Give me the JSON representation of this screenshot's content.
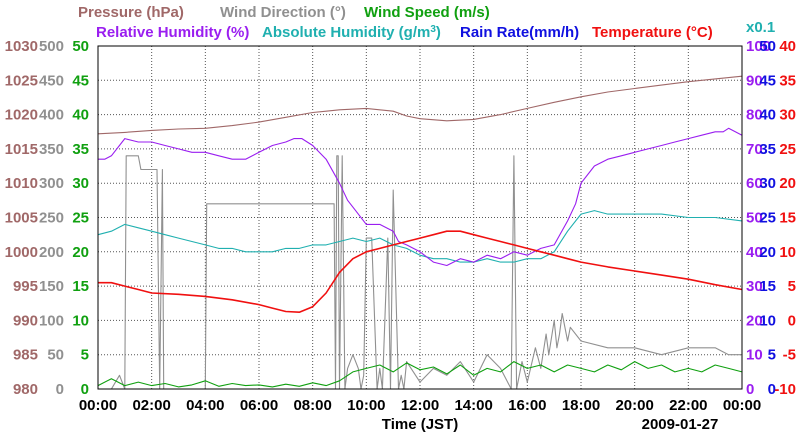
{
  "chart_data": {
    "type": "line",
    "title": "",
    "date_label": "2009-01-27",
    "xlabel": "Time (JST)",
    "x_ticks": [
      "00:00",
      "02:00",
      "04:00",
      "06:00",
      "08:00",
      "10:00",
      "12:00",
      "14:00",
      "16:00",
      "18:00",
      "20:00",
      "22:00",
      "00:00"
    ],
    "x_range_hours": [
      0,
      24
    ],
    "grid": true,
    "legend": [
      {
        "name": "Pressure (hPa)",
        "color": "#a06868"
      },
      {
        "name": "Wind Direction (°)",
        "color": "#909090"
      },
      {
        "name": "Wind Speed (m/s)",
        "color": "#10a010"
      },
      {
        "name": "Relative Humidity (%)",
        "color": "#9a1ef0"
      },
      {
        "name": "Absolute Humidity (g/m",
        "sup": "3",
        "tail": ")",
        "color": "#20b0b0"
      },
      {
        "name": "Rain Rate(mm/h)",
        "color": "#1010e0"
      },
      {
        "name": "Temperature (°C)",
        "color": "#f01010"
      }
    ],
    "multiplier_label": "x0.1",
    "axes": {
      "pressure": {
        "color": "#a06868",
        "range": [
          980,
          1030
        ],
        "ticks": [
          "980",
          "985",
          "990",
          "995",
          "1000",
          "1005",
          "1010",
          "1015",
          "1020",
          "1025",
          "1030"
        ]
      },
      "wind_direction": {
        "color": "#909090",
        "range": [
          0,
          500
        ],
        "ticks": [
          "0",
          "50",
          "100",
          "150",
          "200",
          "250",
          "300",
          "350",
          "400",
          "450",
          "500"
        ]
      },
      "wind_speed": {
        "color": "#10a010",
        "range": [
          0,
          50
        ],
        "ticks": [
          "0",
          "5",
          "10",
          "15",
          "20",
          "25",
          "30",
          "35",
          "40",
          "45",
          "50"
        ]
      },
      "relative_humidity": {
        "color": "#9a1ef0",
        "range": [
          0,
          100
        ],
        "ticks": [
          "0",
          "10",
          "20",
          "30",
          "40",
          "50",
          "60",
          "70",
          "80",
          "90",
          "100"
        ]
      },
      "rain_rate": {
        "color": "#1010e0",
        "range": [
          0,
          50
        ],
        "ticks": [
          "0",
          "5",
          "10",
          "15",
          "20",
          "25",
          "30",
          "35",
          "40",
          "45",
          "50"
        ]
      },
      "temperature": {
        "color": "#f01010",
        "range": [
          -10,
          40
        ],
        "ticks": [
          "-10",
          "-5",
          "0",
          "5",
          "10",
          "15",
          "20",
          "25",
          "30",
          "35",
          "40"
        ]
      }
    },
    "series": [
      {
        "name": "Pressure (hPa)",
        "axis": "pressure",
        "color": "#a06868",
        "x": [
          0,
          1,
          2,
          3,
          4,
          5,
          6,
          7,
          8,
          8.5,
          9,
          10,
          11,
          11.5,
          12,
          13,
          14,
          15,
          16,
          17,
          18,
          19,
          20,
          21,
          22,
          23,
          24
        ],
        "y": [
          1017.2,
          1017.4,
          1017.7,
          1017.9,
          1018.0,
          1018.4,
          1018.9,
          1019.6,
          1020.3,
          1020.5,
          1020.7,
          1020.9,
          1020.5,
          1019.8,
          1019.4,
          1019.1,
          1019.3,
          1020.0,
          1020.9,
          1021.8,
          1022.6,
          1023.3,
          1023.8,
          1024.3,
          1024.8,
          1025.2,
          1025.6
        ]
      },
      {
        "name": "Wind Direction (°)",
        "axis": "wind_direction",
        "color": "#909090",
        "x": [
          0,
          0.5,
          0.8,
          1.0,
          1.05,
          1.5,
          1.6,
          2.2,
          2.3,
          2.4,
          2.45,
          3,
          4,
          4.05,
          4.1,
          6,
          7,
          8,
          8.5,
          8.8,
          8.85,
          8.9,
          8.95,
          9.0,
          9.1,
          9.2,
          9.3,
          9.5,
          9.7,
          9.8,
          9.9,
          10,
          10.2,
          10.4,
          10.5,
          10.6,
          10.8,
          10.9,
          11,
          11.2,
          11.3,
          11.4,
          11.5,
          12,
          12.5,
          13,
          13.5,
          14,
          14.5,
          15,
          15.4,
          15.5,
          15.6,
          15.7,
          15.8,
          16,
          16.3,
          16.5,
          16.7,
          16.8,
          17,
          17.1,
          17.2,
          17.3,
          17.5,
          17.6,
          18,
          19,
          20,
          21,
          22,
          23,
          23.5,
          24
        ],
        "y": [
          0,
          0,
          20,
          0,
          340,
          340,
          320,
          320,
          0,
          320,
          0,
          0,
          0,
          270,
          270,
          270,
          270,
          270,
          270,
          270,
          0,
          340,
          340,
          0,
          340,
          0,
          30,
          50,
          30,
          0,
          20,
          220,
          220,
          0,
          30,
          0,
          220,
          0,
          290,
          0,
          20,
          0,
          40,
          10,
          30,
          20,
          40,
          10,
          50,
          30,
          0,
          340,
          0,
          20,
          40,
          10,
          60,
          30,
          80,
          50,
          100,
          60,
          80,
          110,
          70,
          90,
          70,
          60,
          60,
          50,
          60,
          60,
          50,
          50
        ]
      },
      {
        "name": "Wind Speed (m/s)",
        "axis": "wind_speed",
        "color": "#10a010",
        "x": [
          0,
          0.5,
          1,
          1.5,
          2,
          2.5,
          3,
          3.5,
          4,
          4.5,
          5,
          5.5,
          6,
          6.5,
          7,
          7.5,
          8,
          8.5,
          9,
          9.5,
          10,
          10.5,
          11,
          11.5,
          12,
          12.5,
          13,
          13.5,
          14,
          14.5,
          15,
          15.5,
          16,
          16.5,
          17,
          17.5,
          18,
          18.5,
          19,
          19.5,
          20,
          20.5,
          21,
          21.5,
          22,
          22.5,
          23,
          23.5,
          24
        ],
        "y": [
          0.5,
          1.5,
          0.5,
          1,
          0.5,
          0.8,
          0.3,
          0.6,
          1.2,
          0.4,
          0.8,
          0.5,
          0.6,
          0.3,
          0.7,
          0.4,
          0.9,
          0.5,
          1.2,
          2.5,
          3,
          3.5,
          2.5,
          3.8,
          2.8,
          3.2,
          2.2,
          3.5,
          2,
          3,
          2.5,
          4,
          3,
          3.5,
          2.5,
          3.5,
          3,
          2.5,
          3.5,
          2.8,
          4,
          3,
          3.5,
          2.5,
          3,
          2.5,
          3.5,
          3,
          2.5
        ]
      },
      {
        "name": "Relative Humidity (%)",
        "axis": "relative_humidity",
        "color": "#9a1ef0",
        "x": [
          0,
          0.25,
          0.5,
          1,
          1.5,
          2,
          2.5,
          3,
          3.5,
          4,
          4.5,
          5,
          5.5,
          6,
          6.5,
          7,
          7.3,
          7.6,
          8,
          8.5,
          9,
          9.3,
          9.6,
          10,
          10.5,
          11,
          11.2,
          11.5,
          12,
          12.5,
          13,
          13.5,
          14,
          14.5,
          15,
          15.5,
          16,
          16.5,
          17,
          17.5,
          17.8,
          18,
          18.5,
          19,
          19.5,
          20,
          20.5,
          21,
          21.5,
          22,
          22.5,
          23,
          23.3,
          23.5,
          24
        ],
        "y": [
          67,
          67,
          68,
          73,
          72,
          72,
          71,
          70,
          69,
          69,
          68,
          67,
          67,
          69,
          71,
          72,
          73,
          73,
          71,
          67,
          60,
          55,
          52,
          48,
          48,
          46,
          43,
          42,
          40,
          37,
          36,
          38,
          37,
          39,
          38,
          40,
          39,
          41,
          42,
          49,
          54,
          60,
          65,
          67,
          68,
          69,
          70,
          71,
          72,
          73,
          74,
          75,
          75,
          76,
          74
        ]
      },
      {
        "name": "Absolute Humidity (g/m3)",
        "axis": "relative_humidity",
        "color": "#20b0b0",
        "x": [
          0,
          0.5,
          1,
          1.5,
          2,
          2.5,
          3,
          3.5,
          4,
          4.5,
          5,
          5.5,
          6,
          6.5,
          7,
          7.5,
          8,
          8.5,
          9,
          9.5,
          10,
          10.5,
          11,
          11.5,
          12,
          12.5,
          13,
          13.5,
          14,
          14.5,
          15,
          15.5,
          16,
          16.5,
          17,
          17.5,
          18,
          18.5,
          19,
          19.5,
          20,
          21,
          22,
          23,
          24
        ],
        "y": [
          45,
          46,
          48,
          47,
          46,
          45,
          44,
          43,
          42,
          41,
          41,
          40,
          40,
          40,
          41,
          41,
          42,
          42,
          43,
          44,
          43,
          44,
          42,
          41,
          39,
          38,
          38,
          37,
          37,
          38,
          37,
          37,
          38,
          38,
          40,
          46,
          51,
          52,
          51,
          51,
          51,
          51,
          50,
          50,
          49
        ]
      },
      {
        "name": "Temperature (°C)",
        "axis": "temperature",
        "color": "#f01010",
        "x": [
          0,
          0.5,
          1,
          1.5,
          2,
          3,
          4,
          5,
          6,
          6.5,
          7,
          7.5,
          8,
          8.5,
          9,
          9.5,
          10,
          10.5,
          11,
          11.5,
          12,
          12.5,
          13,
          13.5,
          14,
          14.5,
          15,
          15.5,
          16,
          16.5,
          17,
          17.5,
          18,
          19,
          20,
          21,
          22,
          23,
          24
        ],
        "y": [
          5.5,
          5.5,
          5,
          4.5,
          4,
          3.8,
          3.5,
          3,
          2.3,
          1.8,
          1.3,
          1.2,
          2,
          4,
          7,
          9,
          10,
          10.5,
          11,
          11.5,
          12,
          12.5,
          13,
          13,
          12.5,
          12,
          11.5,
          11,
          10.5,
          10,
          9.5,
          9,
          8.5,
          7.8,
          7.2,
          6.6,
          6,
          5.2,
          4.5
        ]
      }
    ]
  }
}
